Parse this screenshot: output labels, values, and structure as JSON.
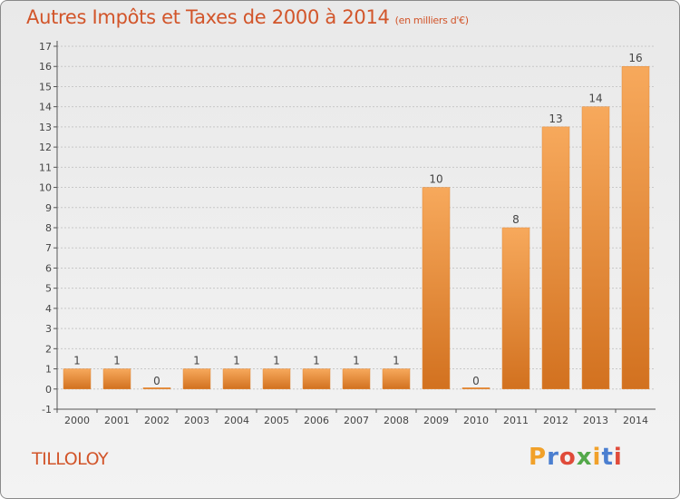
{
  "title": "Autres Impôts et Taxes de 2000 à 2014",
  "subtitle": "(en milliers d'€)",
  "commune": "TILLOLOY",
  "logo": {
    "letters": [
      "P",
      "r",
      "o",
      "x",
      "i",
      "t",
      "i"
    ],
    "colors": [
      "#f1a12a",
      "#4b7fd0",
      "#e04b3a",
      "#53a84a",
      "#f1a12a",
      "#4b7fd0",
      "#e04b3a"
    ]
  },
  "colors": {
    "accent": "#d2552a",
    "bar_top": "#f7a95c",
    "bar_bottom": "#d2711f"
  },
  "chart_data": {
    "type": "bar",
    "categories": [
      "2000",
      "2001",
      "2002",
      "2003",
      "2004",
      "2005",
      "2006",
      "2007",
      "2008",
      "2009",
      "2010",
      "2011",
      "2012",
      "2013",
      "2014"
    ],
    "values": [
      1,
      1,
      0,
      1,
      1,
      1,
      1,
      1,
      1,
      10,
      0,
      8,
      13,
      14,
      16
    ],
    "data_labels": [
      "1",
      "1",
      "0",
      "1",
      "1",
      "1",
      "1",
      "1",
      "1",
      "10",
      "0",
      "8",
      "13",
      "14",
      "16"
    ],
    "ylim": [
      -1,
      17
    ],
    "yticks": [
      -1,
      0,
      1,
      2,
      3,
      4,
      5,
      6,
      7,
      8,
      9,
      10,
      11,
      12,
      13,
      14,
      15,
      16,
      17
    ],
    "grid": "horizontal"
  }
}
